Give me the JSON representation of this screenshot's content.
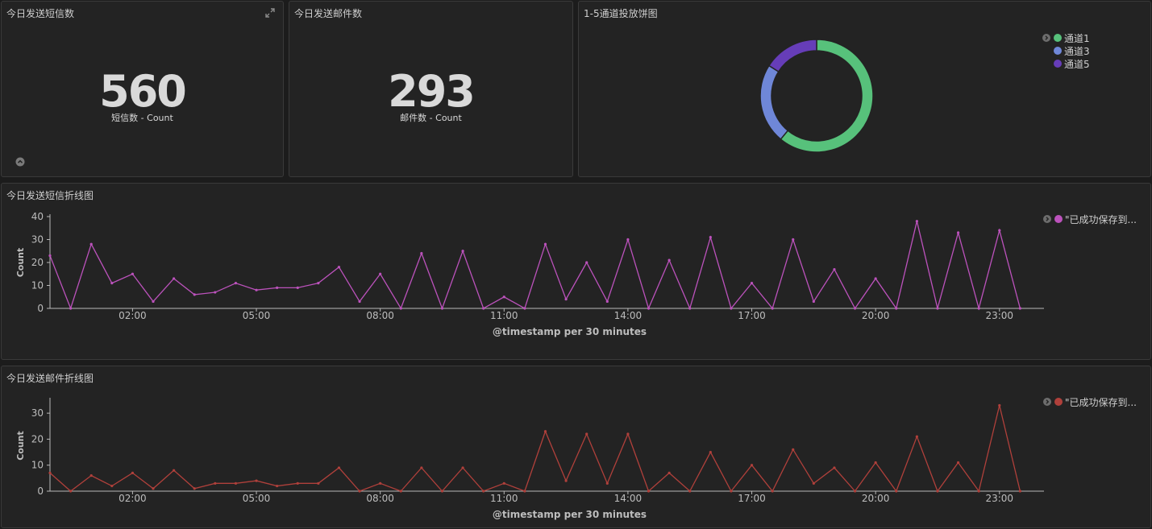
{
  "panels": {
    "sms_count": {
      "title": "今日发送短信数",
      "value": "560",
      "label": "短信数 - Count"
    },
    "mail_count": {
      "title": "今日发送邮件数",
      "value": "293",
      "label": "邮件数 - Count"
    },
    "pie": {
      "title": "1-5通道投放饼图"
    },
    "sms_line": {
      "title": "今日发送短信折线图"
    },
    "mail_line": {
      "title": "今日发送邮件折线图"
    }
  },
  "icons": {
    "expand": "expand-icon",
    "collapse": "chevron-up-icon",
    "legend_toggle": "chevron-right-icon"
  },
  "colors": {
    "green": "#57c17b",
    "blue": "#6f87d8",
    "purple": "#663db8",
    "pink": "#bc52bc",
    "red": "#b0403b"
  },
  "chart_data": [
    {
      "type": "pie",
      "donut": true,
      "legend_position": "top-right",
      "labels": [
        "通道1",
        "通道3",
        "通道5"
      ],
      "values": [
        61,
        23,
        16
      ],
      "colors": [
        "#57c17b",
        "#6f87d8",
        "#663db8"
      ]
    },
    {
      "type": "line",
      "ylabel": "Count",
      "xlabel": "@timestamp per 30 minutes",
      "ylim": [
        0,
        40
      ],
      "yticks": [
        0,
        10,
        20,
        30,
        40
      ],
      "xticks": [
        "02:00",
        "05:00",
        "08:00",
        "11:00",
        "14:00",
        "17:00",
        "20:00",
        "23:00"
      ],
      "legend_position": "top-right",
      "series": [
        {
          "name": "\"已成功保存到...",
          "color": "#bc52bc",
          "x_start_hour": 0,
          "interval_hours": 0.5,
          "values": [
            23,
            0,
            28,
            11,
            15,
            3,
            13,
            6,
            7,
            11,
            8,
            9,
            9,
            11,
            18,
            3,
            15,
            0,
            24,
            0,
            25,
            0,
            5,
            0,
            28,
            4,
            20,
            3,
            30,
            0,
            21,
            0,
            31,
            0,
            11,
            0,
            30,
            3,
            17,
            0,
            13,
            0,
            38,
            0,
            33,
            0,
            34,
            0
          ]
        }
      ]
    },
    {
      "type": "line",
      "ylabel": "Count",
      "xlabel": "@timestamp per 30 minutes",
      "ylim": [
        0,
        35
      ],
      "yticks": [
        0,
        10,
        20,
        30
      ],
      "xticks": [
        "02:00",
        "05:00",
        "08:00",
        "11:00",
        "14:00",
        "17:00",
        "20:00",
        "23:00"
      ],
      "legend_position": "top-right",
      "series": [
        {
          "name": "\"已成功保存到...",
          "color": "#b0403b",
          "x_start_hour": 0,
          "interval_hours": 0.5,
          "values": [
            7,
            0,
            6,
            2,
            7,
            1,
            8,
            1,
            3,
            3,
            4,
            2,
            3,
            3,
            9,
            0,
            3,
            0,
            9,
            0,
            9,
            0,
            3,
            0,
            23,
            4,
            22,
            3,
            22,
            0,
            7,
            0,
            15,
            0,
            10,
            0,
            16,
            3,
            9,
            0,
            11,
            0,
            21,
            0,
            11,
            0,
            33,
            0
          ]
        }
      ]
    }
  ]
}
